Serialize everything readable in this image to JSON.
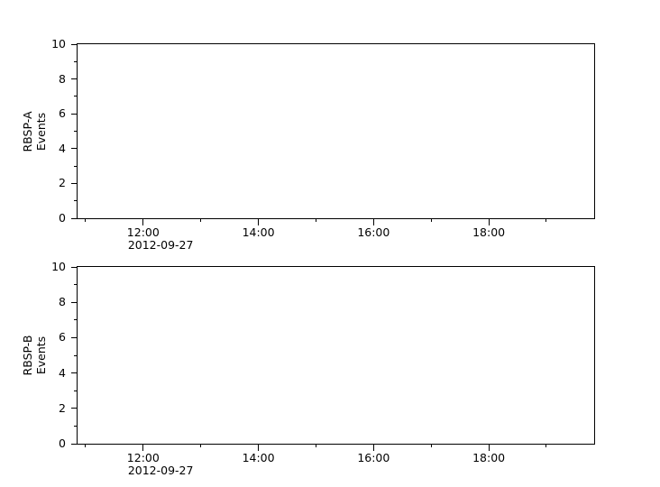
{
  "figure": {
    "background_color": "#ffffff",
    "axis_color": "#000000",
    "text_color": "#000000"
  },
  "chart_data": [
    {
      "type": "line",
      "panel_id": "RBSP-A",
      "title": "",
      "ylabel_lines": [
        "RBSP-A",
        "Events"
      ],
      "ylim": [
        0,
        10
      ],
      "ytick_major_values": [
        0,
        2,
        4,
        6,
        8,
        10
      ],
      "ytick_major_labels": [
        "0",
        "2",
        "4",
        "6",
        "8",
        "10"
      ],
      "ytick_minor_values": [
        1,
        3,
        5,
        7,
        9
      ],
      "x_axis": {
        "date_label": "2012-09-27",
        "xlim_hours": [
          10.86,
          19.83
        ],
        "major_tick_hours": [
          12,
          14,
          16,
          18
        ],
        "major_tick_labels": [
          "12:00",
          "14:00",
          "16:00",
          "18:00"
        ],
        "minor_tick_hours": [
          11,
          13,
          15,
          17,
          19
        ]
      },
      "series": [],
      "grid": false,
      "legend": null
    },
    {
      "type": "line",
      "panel_id": "RBSP-B",
      "title": "",
      "ylabel_lines": [
        "RBSP-B",
        "Events"
      ],
      "ylim": [
        0,
        10
      ],
      "ytick_major_values": [
        0,
        2,
        4,
        6,
        8,
        10
      ],
      "ytick_major_labels": [
        "0",
        "2",
        "4",
        "6",
        "8",
        "10"
      ],
      "ytick_minor_values": [
        1,
        3,
        5,
        7,
        9
      ],
      "x_axis": {
        "date_label": "2012-09-27",
        "xlim_hours": [
          10.86,
          19.83
        ],
        "major_tick_hours": [
          12,
          14,
          16,
          18
        ],
        "major_tick_labels": [
          "12:00",
          "14:00",
          "16:00",
          "18:00"
        ],
        "minor_tick_hours": [
          11,
          13,
          15,
          17,
          19
        ]
      },
      "series": [],
      "grid": false,
      "legend": null
    }
  ]
}
